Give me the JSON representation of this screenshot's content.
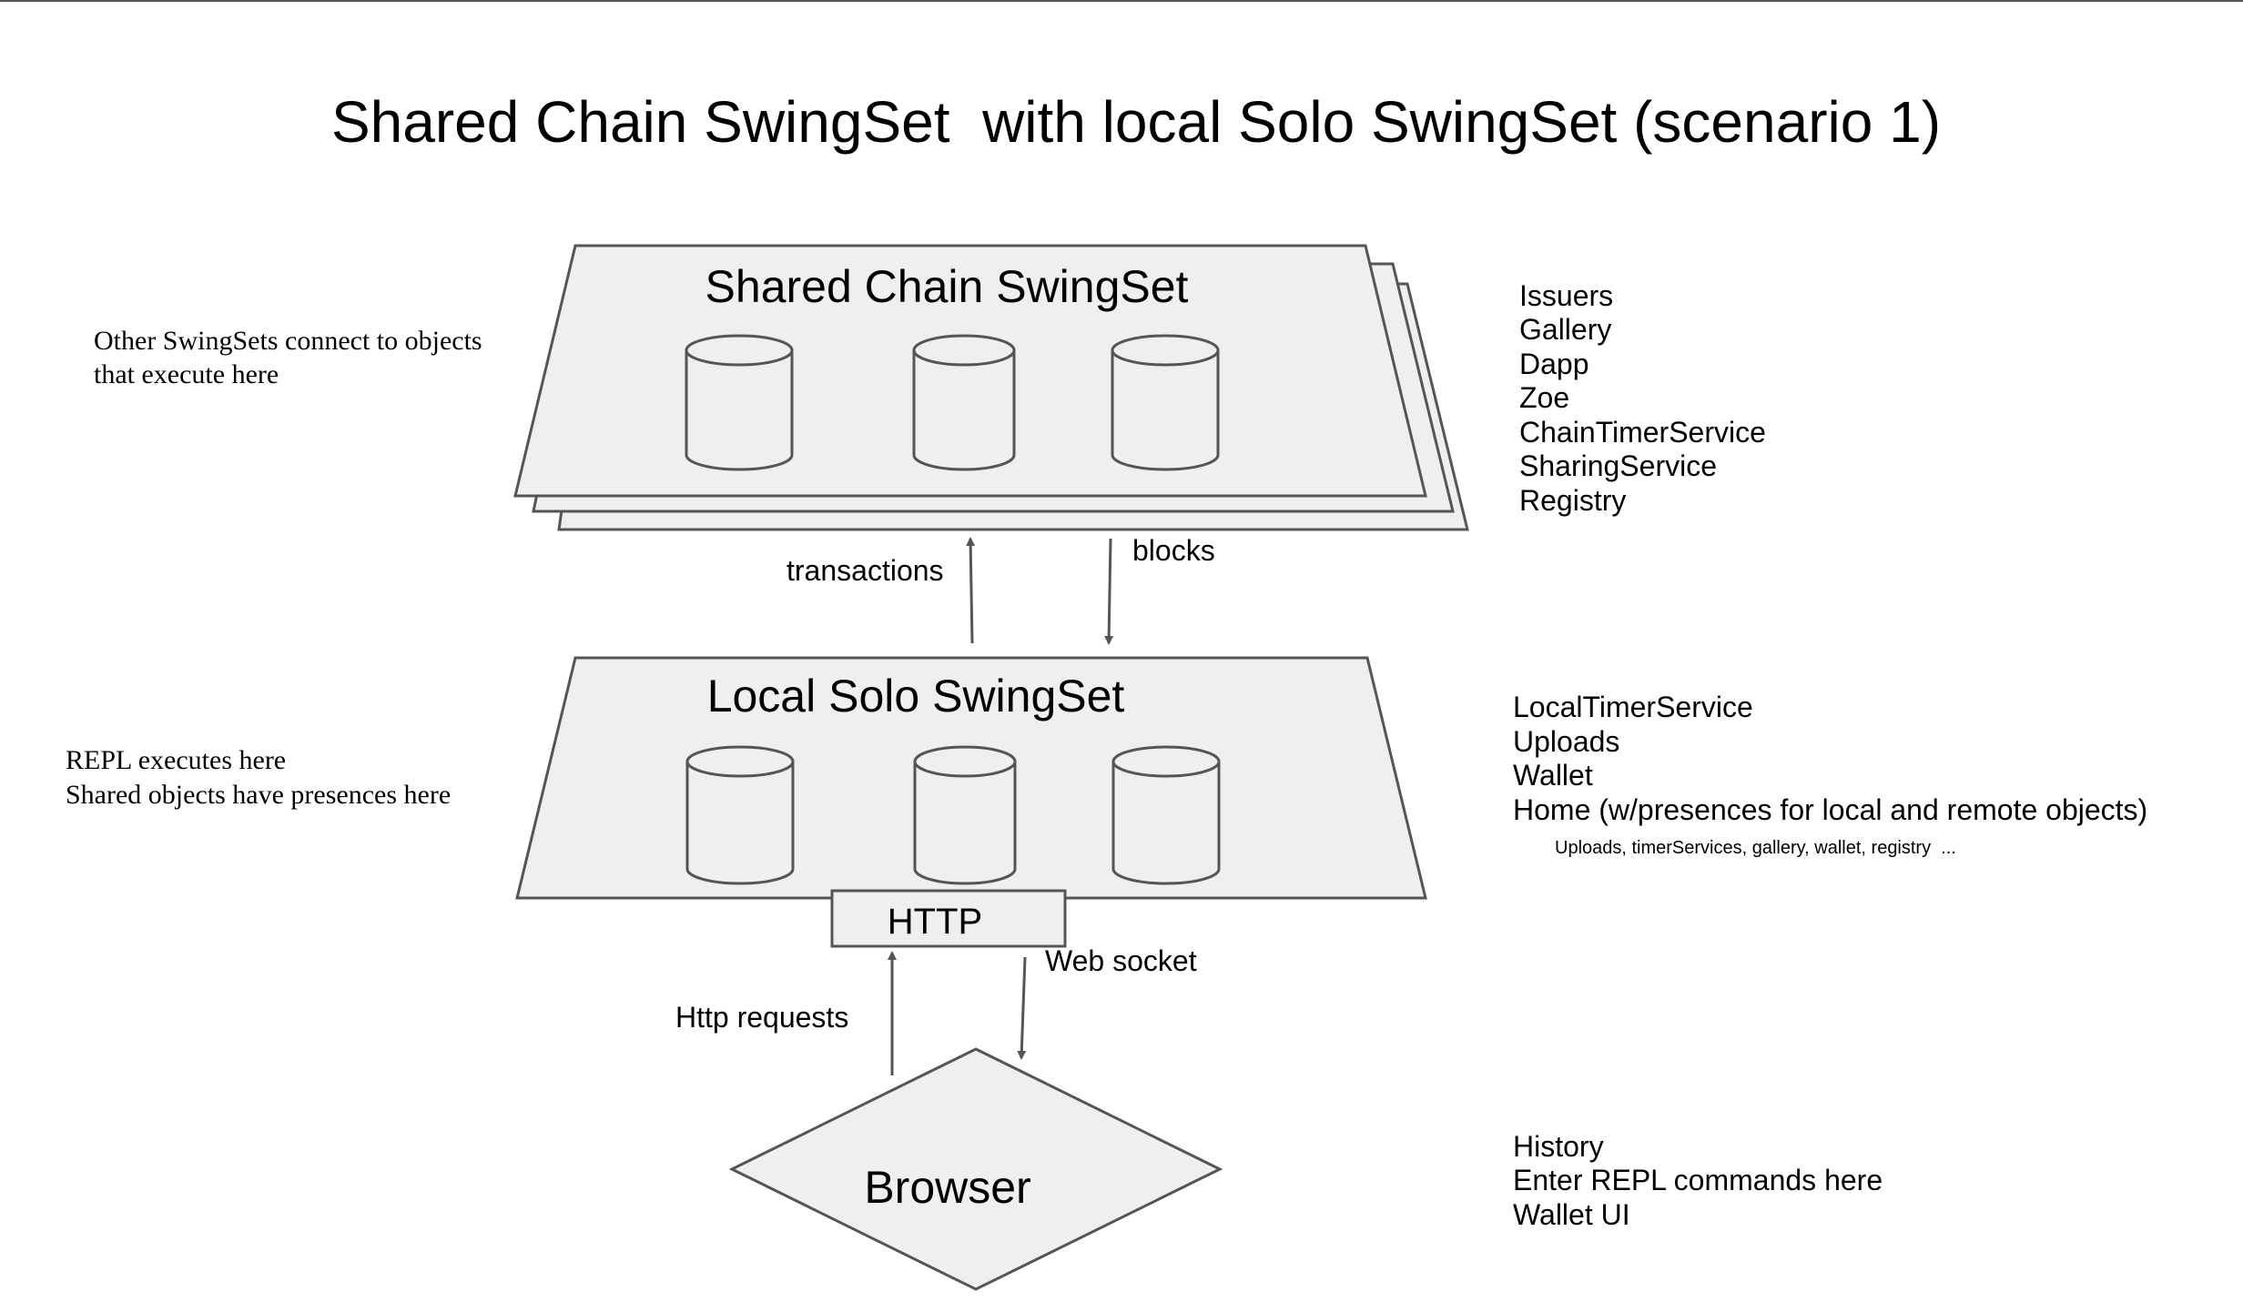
{
  "title": "Shared Chain SwingSet  with local Solo SwingSet (scenario 1)",
  "shared_chain": {
    "label": "Shared Chain SwingSet",
    "note_lines": [
      "Other SwingSets connect to objects",
      "that execute here"
    ],
    "services": [
      "Issuers",
      "Gallery",
      "Dapp",
      "Zoe",
      "ChainTimerService",
      "SharingService",
      "Registry"
    ]
  },
  "arrows_chain": {
    "up_label": "transactions",
    "down_label": "blocks"
  },
  "local_solo": {
    "label": "Local Solo SwingSet",
    "note_lines": [
      "REPL executes here",
      "Shared objects have presences here"
    ],
    "services": [
      "LocalTimerService",
      "Uploads",
      "Wallet",
      "Home (w/presences for local and remote objects)"
    ],
    "home_detail": "Uploads, timerServices, gallery, wallet, registry  ..."
  },
  "http_box": {
    "label": "HTTP"
  },
  "arrows_browser": {
    "up_label": "Http requests",
    "down_label": "Web socket"
  },
  "browser": {
    "label": "Browser",
    "features": [
      "History",
      "Enter REPL commands here",
      "Wallet UI"
    ]
  },
  "colors": {
    "shape_fill": "#efefef",
    "stroke": "#555555",
    "top_rule": "#555555"
  }
}
